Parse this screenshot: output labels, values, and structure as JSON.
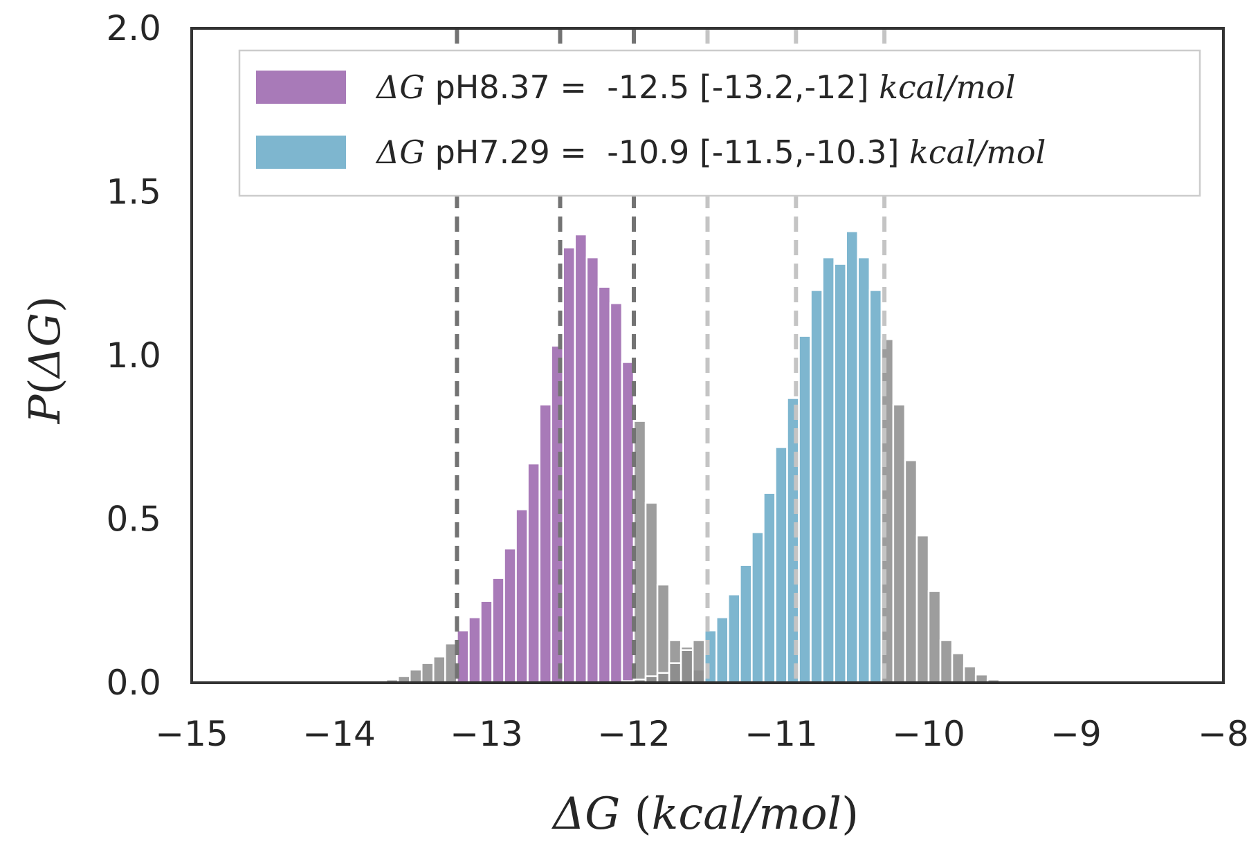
{
  "chart_data": {
    "type": "bar",
    "xlabel_parts": [
      "ΔG",
      " (",
      "kcal/mol",
      ")"
    ],
    "ylabel_parts": [
      "P",
      "(",
      "ΔG",
      ")"
    ],
    "xlim": [
      -15,
      -8
    ],
    "ylim": [
      0,
      2.0
    ],
    "grid": false,
    "legend_position": "top-right",
    "x_ticks": [
      -15,
      -14,
      -13,
      -12,
      -11,
      -10,
      -9,
      -8
    ],
    "x_tick_labels": [
      "−15",
      "−14",
      "−13",
      "−12",
      "−11",
      "−10",
      "−9",
      "−8"
    ],
    "y_ticks": [
      0.0,
      0.5,
      1.0,
      1.5,
      2.0
    ],
    "y_tick_labels": [
      "0.0",
      "0.5",
      "1.0",
      "1.5",
      "2.0"
    ],
    "bin_width": 0.08,
    "series": [
      {
        "legend": {
          "symbol": "ΔG",
          "text": " pH8.37 =  -12.5 [-13.2,-12] ",
          "unit": "kcal/mol"
        },
        "color": "#a87ab8",
        "tail_color": "#8c8c8c",
        "ci": [
          -13.2,
          -12.0
        ],
        "median": -12.5,
        "bins": [
          {
            "x": -14.16,
            "p": 0.002
          },
          {
            "x": -13.84,
            "p": 0.003
          },
          {
            "x": -13.76,
            "p": 0.005
          },
          {
            "x": -13.68,
            "p": 0.01
          },
          {
            "x": -13.6,
            "p": 0.02
          },
          {
            "x": -13.52,
            "p": 0.04
          },
          {
            "x": -13.44,
            "p": 0.06
          },
          {
            "x": -13.36,
            "p": 0.08
          },
          {
            "x": -13.28,
            "p": 0.12
          },
          {
            "x": -13.2,
            "p": 0.16
          },
          {
            "x": -13.12,
            "p": 0.2
          },
          {
            "x": -13.04,
            "p": 0.25
          },
          {
            "x": -12.96,
            "p": 0.32
          },
          {
            "x": -12.88,
            "p": 0.41
          },
          {
            "x": -12.8,
            "p": 0.53
          },
          {
            "x": -12.72,
            "p": 0.67
          },
          {
            "x": -12.64,
            "p": 0.85
          },
          {
            "x": -12.56,
            "p": 1.03
          },
          {
            "x": -12.48,
            "p": 1.33
          },
          {
            "x": -12.4,
            "p": 1.37
          },
          {
            "x": -12.32,
            "p": 1.3
          },
          {
            "x": -12.24,
            "p": 1.21
          },
          {
            "x": -12.16,
            "p": 1.16
          },
          {
            "x": -12.08,
            "p": 0.98
          },
          {
            "x": -12.0,
            "p": 0.8
          },
          {
            "x": -11.92,
            "p": 0.55
          },
          {
            "x": -11.84,
            "p": 0.3
          },
          {
            "x": -11.76,
            "p": 0.13
          },
          {
            "x": -11.68,
            "p": 0.11
          },
          {
            "x": -11.6,
            "p": 0.04
          },
          {
            "x": -11.52,
            "p": 0.02
          },
          {
            "x": -11.44,
            "p": 0.015
          }
        ]
      },
      {
        "legend": {
          "symbol": "ΔG",
          "text": " pH7.29 =  -10.9 [-11.5,-10.3] ",
          "unit": "kcal/mol"
        },
        "color": "#7eb6cf",
        "tail_color": "#8c8c8c",
        "ci": [
          -11.5,
          -10.3
        ],
        "median": -10.9,
        "bins": [
          {
            "x": -12.08,
            "p": 0.005
          },
          {
            "x": -12.0,
            "p": 0.01
          },
          {
            "x": -11.92,
            "p": 0.02
          },
          {
            "x": -11.84,
            "p": 0.03
          },
          {
            "x": -11.76,
            "p": 0.06
          },
          {
            "x": -11.68,
            "p": 0.1
          },
          {
            "x": -11.6,
            "p": 0.13
          },
          {
            "x": -11.52,
            "p": 0.16
          },
          {
            "x": -11.44,
            "p": 0.2
          },
          {
            "x": -11.36,
            "p": 0.27
          },
          {
            "x": -11.28,
            "p": 0.36
          },
          {
            "x": -11.2,
            "p": 0.46
          },
          {
            "x": -11.12,
            "p": 0.58
          },
          {
            "x": -11.04,
            "p": 0.72
          },
          {
            "x": -10.96,
            "p": 0.87
          },
          {
            "x": -10.88,
            "p": 1.06
          },
          {
            "x": -10.8,
            "p": 1.2
          },
          {
            "x": -10.72,
            "p": 1.3
          },
          {
            "x": -10.64,
            "p": 1.28
          },
          {
            "x": -10.56,
            "p": 1.38
          },
          {
            "x": -10.48,
            "p": 1.3
          },
          {
            "x": -10.4,
            "p": 1.2
          },
          {
            "x": -10.32,
            "p": 1.05
          },
          {
            "x": -10.24,
            "p": 0.85
          },
          {
            "x": -10.16,
            "p": 0.68
          },
          {
            "x": -10.08,
            "p": 0.45
          },
          {
            "x": -10.0,
            "p": 0.28
          },
          {
            "x": -9.92,
            "p": 0.13
          },
          {
            "x": -9.84,
            "p": 0.09
          },
          {
            "x": -9.76,
            "p": 0.05
          },
          {
            "x": -9.68,
            "p": 0.025
          },
          {
            "x": -9.6,
            "p": 0.01
          },
          {
            "x": -9.52,
            "p": 0.005
          }
        ]
      }
    ],
    "reference_lines": [
      {
        "x": -13.2,
        "color": "#737373"
      },
      {
        "x": -12.5,
        "color": "#737373"
      },
      {
        "x": -12.0,
        "color": "#737373"
      },
      {
        "x": -11.5,
        "color": "#c4c4c4"
      },
      {
        "x": -10.9,
        "color": "#c4c4c4"
      },
      {
        "x": -10.3,
        "color": "#c4c4c4"
      }
    ]
  }
}
